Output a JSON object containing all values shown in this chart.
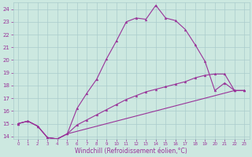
{
  "xlabel": "Windchill (Refroidissement éolien,°C)",
  "bg_color": "#cce8e0",
  "grid_color": "#aacccc",
  "line_color": "#993399",
  "xlim": [
    -0.5,
    23.5
  ],
  "ylim": [
    13.8,
    24.5
  ],
  "xticks": [
    0,
    1,
    2,
    3,
    4,
    5,
    6,
    7,
    8,
    9,
    10,
    11,
    12,
    13,
    14,
    15,
    16,
    17,
    18,
    19,
    20,
    21,
    22,
    23
  ],
  "yticks": [
    14,
    15,
    16,
    17,
    18,
    19,
    20,
    21,
    22,
    23,
    24
  ],
  "line1_x": [
    0,
    1,
    2,
    3,
    4,
    5,
    6,
    7,
    8,
    9,
    10,
    11,
    12,
    13,
    14,
    15,
    16,
    17,
    18,
    19,
    20,
    21,
    22,
    23
  ],
  "line1_y": [
    15.0,
    15.2,
    14.8,
    13.9,
    13.8,
    14.2,
    16.2,
    17.4,
    18.5,
    20.1,
    21.5,
    23.0,
    23.3,
    23.2,
    24.3,
    23.3,
    23.1,
    22.4,
    21.2,
    19.9,
    17.6,
    18.2,
    17.6,
    17.6
  ],
  "line2_x": [
    0,
    1,
    2,
    3,
    4,
    5,
    6,
    7,
    8,
    9,
    10,
    11,
    12,
    13,
    14,
    15,
    16,
    17,
    18,
    19,
    20,
    21,
    22,
    23
  ],
  "line2_y": [
    15.0,
    15.2,
    14.8,
    13.9,
    13.8,
    14.2,
    14.9,
    15.3,
    15.7,
    16.1,
    16.5,
    16.9,
    17.2,
    17.5,
    17.7,
    17.9,
    18.1,
    18.3,
    18.6,
    18.8,
    18.9,
    18.9,
    17.6,
    17.6
  ],
  "line3_x": [
    0,
    1,
    2,
    3,
    4,
    5,
    22,
    23
  ],
  "line3_y": [
    15.0,
    15.2,
    14.8,
    13.9,
    13.8,
    14.2,
    17.6,
    17.6
  ],
  "xlabel_fontsize": 5.5,
  "tick_fontsize": 5.0
}
